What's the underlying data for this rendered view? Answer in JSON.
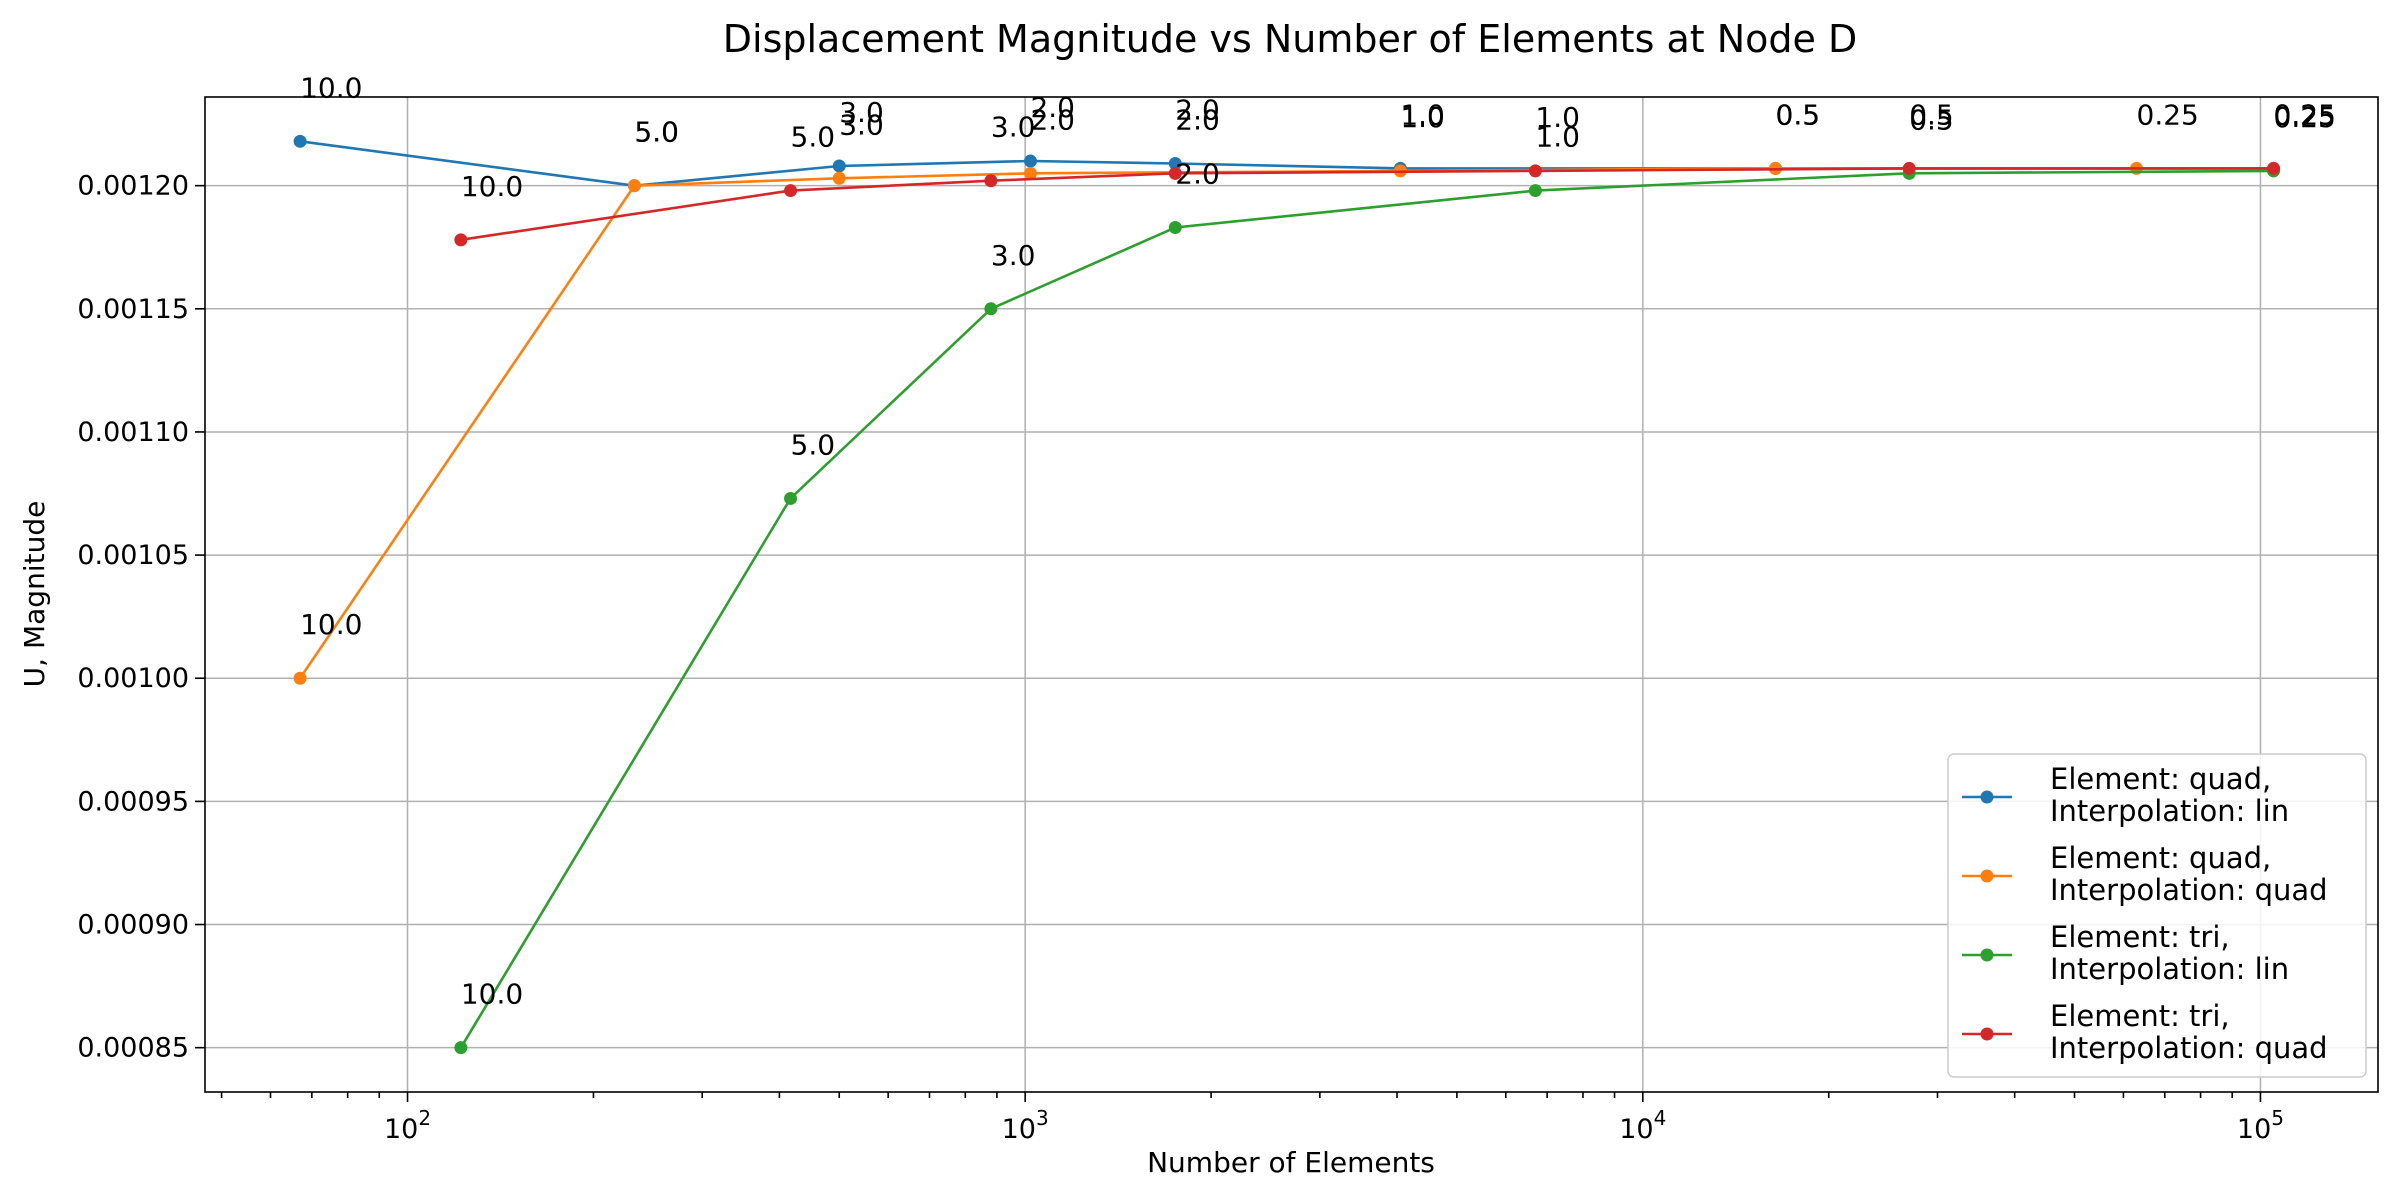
{
  "chart_data": {
    "type": "line",
    "title": "Displacement Magnitude vs Number of Elements at Node D",
    "xlabel": "Number of Elements",
    "ylabel": "U, Magnitude",
    "xscale": "log",
    "xlim": [
      47,
      155000
    ],
    "ylim": [
      0.000832,
      0.001236
    ],
    "x_ticks": [
      {
        "value": 100,
        "base": "10",
        "exp": "2"
      },
      {
        "value": 1000,
        "base": "10",
        "exp": "3"
      },
      {
        "value": 10000,
        "base": "10",
        "exp": "4"
      },
      {
        "value": 100000,
        "base": "10",
        "exp": "5"
      }
    ],
    "y_ticks": [
      {
        "value": 0.00085,
        "label": "0.00085"
      },
      {
        "value": 0.0009,
        "label": "0.00090"
      },
      {
        "value": 0.00095,
        "label": "0.00095"
      },
      {
        "value": 0.001,
        "label": "0.00100"
      },
      {
        "value": 0.00105,
        "label": "0.00105"
      },
      {
        "value": 0.0011,
        "label": "0.00110"
      },
      {
        "value": 0.00115,
        "label": "0.00115"
      },
      {
        "value": 0.0012,
        "label": "0.00120"
      }
    ],
    "grid": true,
    "legend_position": "bottom-right",
    "series": [
      {
        "name_line1": "Element: quad,",
        "name_line2": "Interpolation: lin",
        "color": "#1f77b4",
        "points": [
          {
            "x": 67,
            "y": 0.001218,
            "label": "10.0"
          },
          {
            "x": 233,
            "y": 0.0012,
            "label": "5.0"
          },
          {
            "x": 500,
            "y": 0.001208,
            "label": "3.0"
          },
          {
            "x": 1020,
            "y": 0.00121,
            "label": "2.0"
          },
          {
            "x": 1750,
            "y": 0.001209,
            "label": "2.0"
          },
          {
            "x": 4050,
            "y": 0.001207,
            "label": "1.0"
          },
          {
            "x": 16400,
            "y": 0.001207,
            "label": "0.5"
          },
          {
            "x": 105000,
            "y": 0.001207,
            "label": "0.25"
          }
        ]
      },
      {
        "name_line1": "Element: quad,",
        "name_line2": "Interpolation: quad",
        "color": "#ff7f0e",
        "points": [
          {
            "x": 67,
            "y": 0.001,
            "label": "10.0"
          },
          {
            "x": 233,
            "y": 0.0012,
            "label": "5.0"
          },
          {
            "x": 500,
            "y": 0.001203,
            "label": "3.0"
          },
          {
            "x": 1020,
            "y": 0.001205,
            "label": "2.0"
          },
          {
            "x": 4050,
            "y": 0.001206,
            "label": "1.0"
          },
          {
            "x": 16400,
            "y": 0.001207,
            "label": "0.5"
          },
          {
            "x": 63000,
            "y": 0.001207,
            "label": "0.25"
          }
        ]
      },
      {
        "name_line1": "Element: tri,",
        "name_line2": "Interpolation: lin",
        "color": "#2ca02c",
        "points": [
          {
            "x": 122,
            "y": 0.00085,
            "label": "10.0"
          },
          {
            "x": 417,
            "y": 0.001073,
            "label": "5.0"
          },
          {
            "x": 880,
            "y": 0.00115,
            "label": "3.0"
          },
          {
            "x": 1750,
            "y": 0.001183,
            "label": "2.0"
          },
          {
            "x": 6700,
            "y": 0.001198,
            "label": "1.0"
          },
          {
            "x": 27000,
            "y": 0.001205,
            "label": "0.5"
          },
          {
            "x": 105000,
            "y": 0.001206,
            "label": "0.25"
          }
        ]
      },
      {
        "name_line1": "Element: tri,",
        "name_line2": "Interpolation: quad",
        "color": "#d62728",
        "points": [
          {
            "x": 122,
            "y": 0.001178,
            "label": "10.0"
          },
          {
            "x": 417,
            "y": 0.001198,
            "label": "5.0"
          },
          {
            "x": 880,
            "y": 0.001202,
            "label": "3.0"
          },
          {
            "x": 1750,
            "y": 0.001205,
            "label": "2.0"
          },
          {
            "x": 6700,
            "y": 0.001206,
            "label": "1.0"
          },
          {
            "x": 27000,
            "y": 0.001207,
            "label": "0.5"
          },
          {
            "x": 105000,
            "y": 0.001207,
            "label": "0.25"
          }
        ]
      }
    ]
  }
}
